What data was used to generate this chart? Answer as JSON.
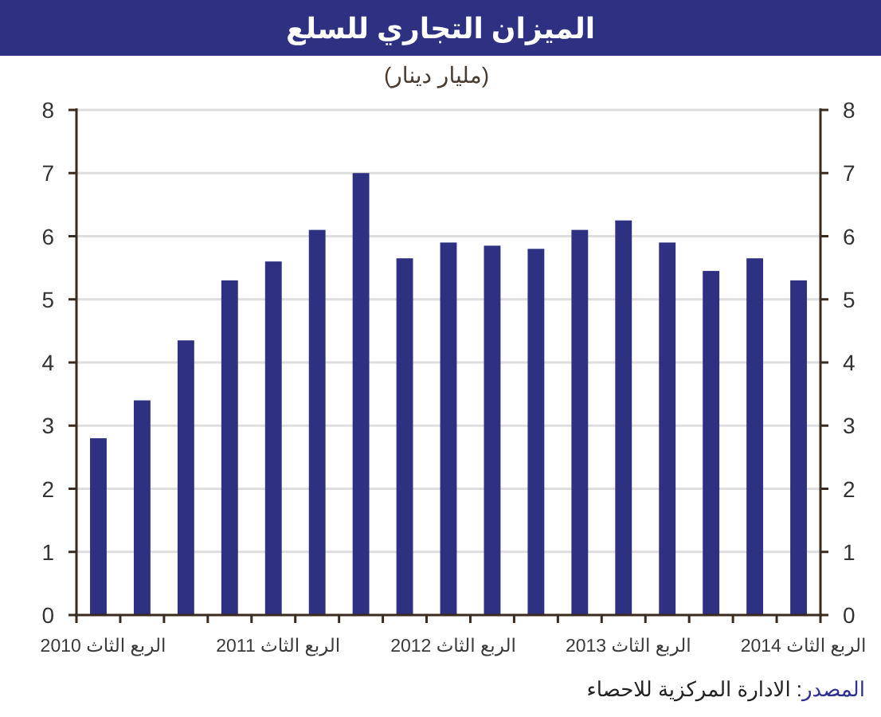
{
  "chart_data": {
    "type": "bar",
    "title": "الميزان التجاري للسلع",
    "subtitle": "(مليار دينار)",
    "categories": [
      "الربع الثاث 2010",
      null,
      null,
      null,
      "الربع الثاث 2011",
      null,
      null,
      null,
      "الربع الثاث 2012",
      null,
      null,
      null,
      "الربع الثاث 2013",
      null,
      null,
      null,
      "الربع الثاث 2014"
    ],
    "values": [
      2.8,
      3.4,
      4.35,
      5.3,
      5.6,
      6.1,
      7.0,
      5.65,
      5.9,
      5.85,
      5.8,
      6.1,
      6.25,
      5.9,
      5.45,
      5.65,
      5.3
    ],
    "color": "#2e3182",
    "ylim": [
      0,
      8
    ],
    "yticks": [
      0,
      1,
      2,
      3,
      4,
      5,
      6,
      7,
      8
    ],
    "y2lim": [
      0,
      8
    ],
    "y2ticks": [
      0,
      1,
      2,
      3,
      4,
      5,
      6,
      7,
      8
    ],
    "grid": "y",
    "annotations": [
      "المصدر: الادارة المركزية للاحصاء"
    ]
  }
}
